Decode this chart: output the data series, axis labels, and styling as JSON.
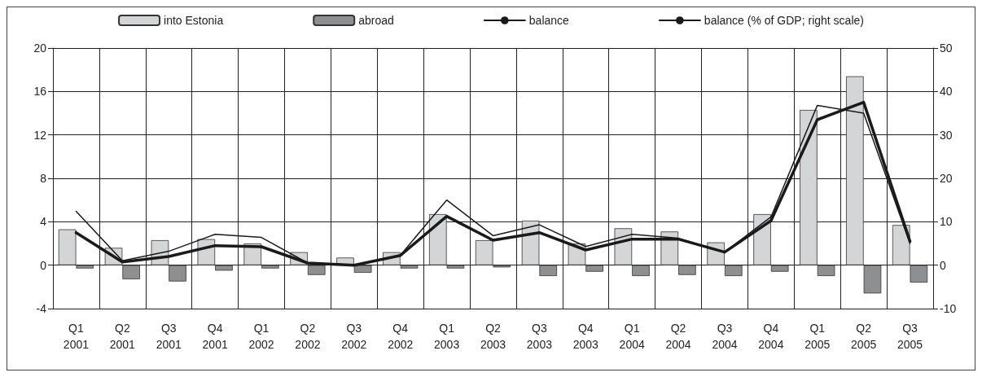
{
  "chart_data": {
    "type": "bar",
    "categories": [
      "Q1 2001",
      "Q2 2001",
      "Q3 2001",
      "Q4 2001",
      "Q1 2002",
      "Q2 2002",
      "Q3 2002",
      "Q4 2002",
      "Q1 2003",
      "Q2 2003",
      "Q3 2003",
      "Q4 2003",
      "Q1 2004",
      "Q2 2004",
      "Q3 2004",
      "Q4 2004",
      "Q1 2005",
      "Q2 2005",
      "Q3 2005"
    ],
    "series": [
      {
        "name": "into Estonia",
        "color": "#d4d5d7",
        "values": [
          3.3,
          1.6,
          2.3,
          2.4,
          2.0,
          1.2,
          0.7,
          1.2,
          4.7,
          2.3,
          4.1,
          2.0,
          3.4,
          3.1,
          2.1,
          4.7,
          14.3,
          17.4,
          3.7
        ]
      },
      {
        "name": "abroad",
        "color": "#8e8f91",
        "values": [
          -0.3,
          -1.3,
          -1.5,
          -0.5,
          -0.3,
          -0.9,
          -0.7,
          -0.3,
          -0.3,
          -0.2,
          -1.0,
          -0.6,
          -1.0,
          -0.9,
          -1.0,
          -0.6,
          -1.0,
          -2.6,
          -1.6
        ]
      },
      {
        "name": "balance",
        "type": "line",
        "color": "#1a1a1a",
        "values": [
          3.0,
          0.3,
          0.8,
          1.8,
          1.7,
          0.2,
          0.0,
          0.9,
          4.5,
          2.3,
          3.0,
          1.4,
          2.4,
          2.4,
          1.2,
          4.1,
          13.4,
          15.0,
          2.2
        ]
      },
      {
        "name": "balance (% of GDP; right scale)",
        "type": "line",
        "axis": "y2",
        "color": "#1a1a1a",
        "values": [
          12.4,
          1.0,
          3.2,
          7.1,
          6.4,
          0.5,
          0,
          2.3,
          15.0,
          6.8,
          9.3,
          4.3,
          7.1,
          6.2,
          3.0,
          11.1,
          36.8,
          35.0,
          5.0
        ]
      }
    ],
    "ylim": [
      -4,
      20
    ],
    "yticks": [
      -4,
      0,
      4,
      8,
      12,
      16,
      20
    ],
    "y2lim": [
      -10,
      50
    ],
    "y2ticks": [
      -10,
      0,
      10,
      20,
      30,
      40,
      50
    ],
    "grid": true,
    "legend": "top",
    "marker": "none",
    "line_style": "solid"
  }
}
